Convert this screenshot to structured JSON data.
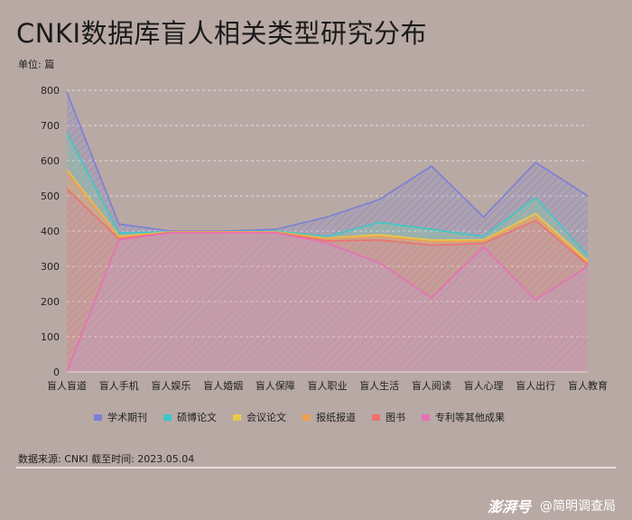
{
  "title": "CNKI数据库盲人相关类型研究分布",
  "unit_label": "单位: 篇",
  "source_label": "数据来源: CNKI   截至时间: 2023.05.04",
  "watermark": {
    "logo": "澎湃号",
    "account": "@简明调查局"
  },
  "chart_data": {
    "type": "area",
    "title": "CNKI数据库盲人相关类型研究分布",
    "ylabel": "单位: 篇",
    "ylim": [
      0,
      800
    ],
    "yticks": [
      0,
      100,
      200,
      300,
      400,
      500,
      600,
      700,
      800
    ],
    "grid": true,
    "legend_position": "bottom",
    "categories": [
      "盲人盲道",
      "盲人手机",
      "盲人娱乐",
      "盲人婚姻",
      "盲人保障",
      "盲人职业",
      "盲人生活",
      "盲人阅读",
      "盲人心理",
      "盲人出行",
      "盲人教育"
    ],
    "series": [
      {
        "name": "学术期刊",
        "color": "#7b7fd6",
        "values": [
          795,
          420,
          400,
          400,
          405,
          440,
          490,
          585,
          440,
          595,
          500
        ]
      },
      {
        "name": "硕博论文",
        "color": "#3cc8c8",
        "values": [
          680,
          395,
          398,
          398,
          400,
          385,
          425,
          405,
          385,
          495,
          330
        ]
      },
      {
        "name": "会议论文",
        "color": "#e8c84a",
        "values": [
          575,
          385,
          398,
          398,
          398,
          380,
          390,
          375,
          375,
          450,
          315
        ]
      },
      {
        "name": "报纸报道",
        "color": "#f0a050",
        "values": [
          570,
          382,
          397,
          397,
          397,
          378,
          385,
          370,
          372,
          440,
          310
        ]
      },
      {
        "name": "图书",
        "color": "#ee7070",
        "values": [
          520,
          378,
          396,
          396,
          396,
          372,
          375,
          360,
          365,
          430,
          305
        ]
      },
      {
        "name": "专利等其他成果",
        "color": "#e870b8",
        "values": [
          0,
          375,
          395,
          395,
          395,
          365,
          310,
          210,
          355,
          205,
          300
        ]
      }
    ]
  }
}
